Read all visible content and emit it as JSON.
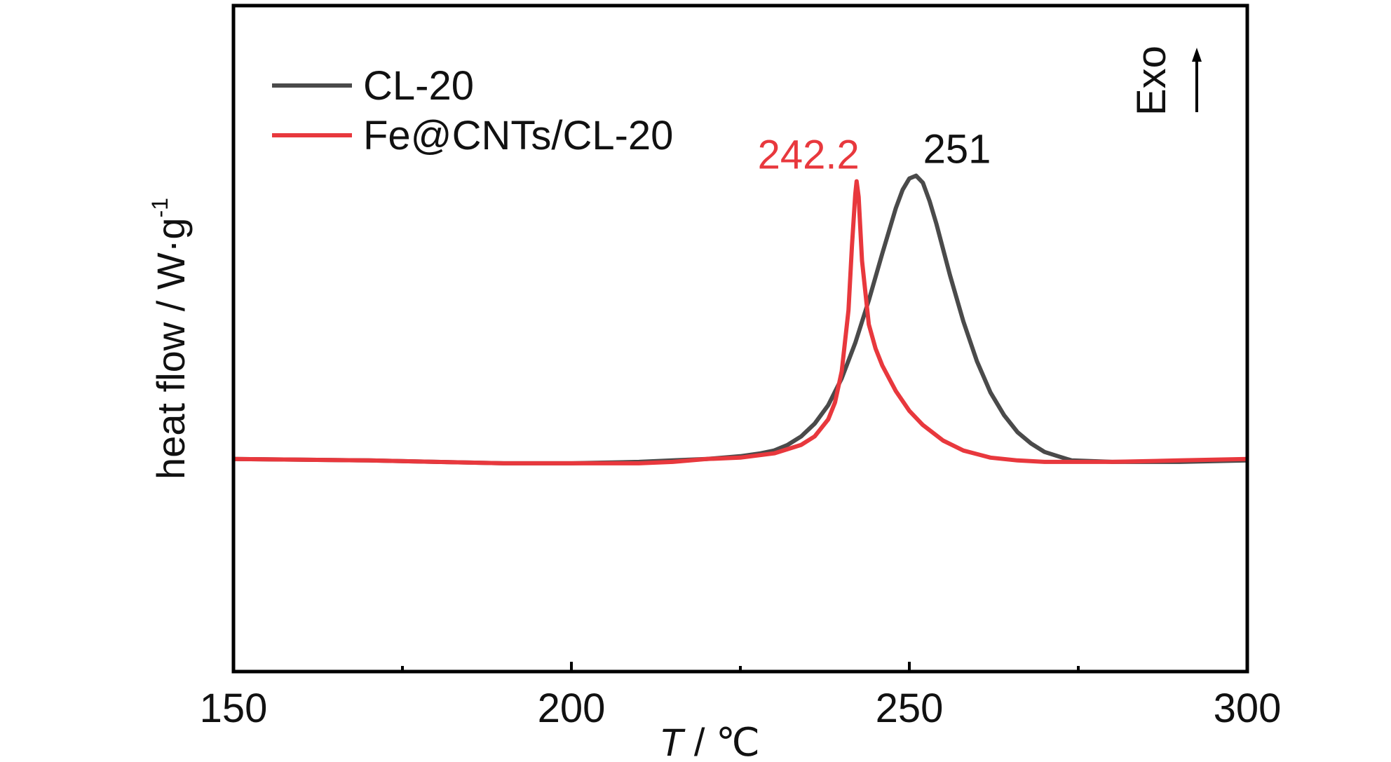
{
  "chart_data": {
    "type": "line",
    "xlabel": {
      "var": "T",
      "unit": " / ℃"
    },
    "ylabel": {
      "main": "heat flow / W·g",
      "sup": "-1"
    },
    "xlim": [
      150,
      300
    ],
    "ylim": [
      -1.5,
      3.2
    ],
    "x_ticks_major": [
      150,
      200,
      250,
      300
    ],
    "x_ticks_minor": [
      175,
      225,
      275
    ],
    "y_ticks_shown": false,
    "grid": false,
    "legend": {
      "placement": "top-left"
    },
    "orientation_label": "Exo",
    "series": [
      {
        "name": "CL-20",
        "color": "#4a4a4a",
        "x": [
          150,
          160,
          170,
          180,
          190,
          200,
          210,
          215,
          220,
          225,
          228,
          230,
          232,
          234,
          236,
          238,
          240,
          242,
          244,
          246,
          248,
          249,
          250,
          251,
          252,
          253,
          254,
          256,
          258,
          260,
          262,
          264,
          266,
          268,
          270,
          272,
          274,
          280,
          290,
          300
        ],
        "y": [
          0.0,
          -0.005,
          -0.01,
          -0.02,
          -0.03,
          -0.03,
          -0.02,
          -0.01,
          0.0,
          0.02,
          0.04,
          0.06,
          0.1,
          0.16,
          0.25,
          0.38,
          0.57,
          0.82,
          1.12,
          1.45,
          1.77,
          1.9,
          1.98,
          2.0,
          1.95,
          1.82,
          1.66,
          1.3,
          0.97,
          0.69,
          0.47,
          0.31,
          0.19,
          0.11,
          0.05,
          0.02,
          -0.01,
          -0.02,
          -0.02,
          -0.01
        ]
      },
      {
        "name": "Fe@CNTs/CL-20",
        "color": "#e8383d",
        "x": [
          150,
          160,
          170,
          180,
          190,
          200,
          210,
          215,
          220,
          225,
          230,
          234,
          236,
          238,
          239,
          240,
          241,
          241.5,
          242,
          242.2,
          242.5,
          243,
          244,
          245,
          246,
          248,
          250,
          252,
          255,
          258,
          262,
          266,
          270,
          280,
          290,
          300
        ],
        "y": [
          0.0,
          -0.005,
          -0.01,
          -0.02,
          -0.03,
          -0.03,
          -0.03,
          -0.02,
          0.0,
          0.01,
          0.04,
          0.1,
          0.16,
          0.28,
          0.4,
          0.62,
          1.05,
          1.5,
          1.87,
          1.96,
          1.85,
          1.4,
          0.95,
          0.78,
          0.66,
          0.48,
          0.34,
          0.24,
          0.13,
          0.06,
          0.01,
          -0.01,
          -0.02,
          -0.02,
          -0.01,
          0.0
        ]
      }
    ],
    "annotations": [
      {
        "text": "242.2",
        "x": 242.2,
        "series": "Fe@CNTs/CL-20",
        "color": "#e8383d"
      },
      {
        "text": "251",
        "x": 251,
        "series": "CL-20",
        "color": "#111111"
      }
    ]
  }
}
